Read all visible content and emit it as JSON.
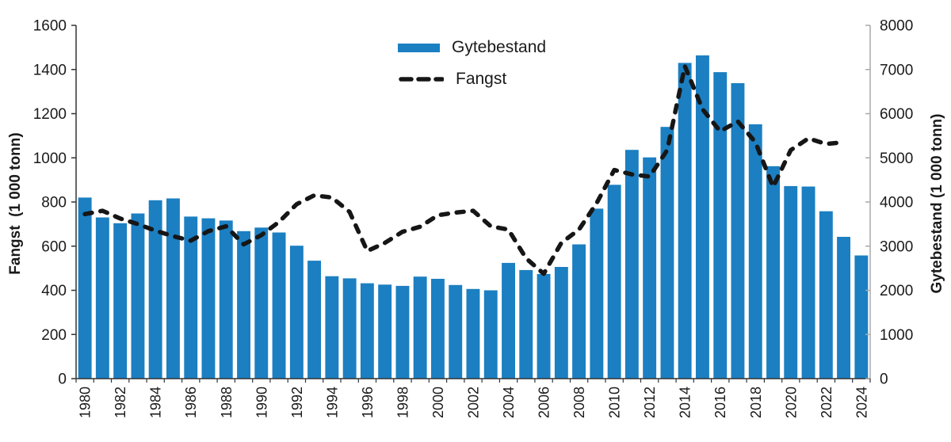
{
  "chart_data": {
    "type": "combo_bar_line",
    "title": "",
    "categories": [
      1980,
      1981,
      1982,
      1983,
      1984,
      1985,
      1986,
      1987,
      1988,
      1989,
      1990,
      1991,
      1992,
      1993,
      1994,
      1995,
      1996,
      1997,
      1998,
      1999,
      2000,
      2001,
      2002,
      2003,
      2004,
      2005,
      2006,
      2007,
      2008,
      2009,
      2010,
      2011,
      2012,
      2013,
      2014,
      2015,
      2016,
      2017,
      2018,
      2019,
      2020,
      2021,
      2022,
      2023,
      2024
    ],
    "series": [
      {
        "name": "Gytebestand",
        "type": "bar",
        "axis": "right",
        "color": "#1b7fc2",
        "values": [
          4100,
          3650,
          3520,
          3740,
          4040,
          4080,
          3670,
          3630,
          3580,
          3340,
          3420,
          3310,
          3010,
          2670,
          2320,
          2270,
          2160,
          2130,
          2100,
          2310,
          2260,
          2120,
          2030,
          2000,
          2620,
          2460,
          2370,
          2530,
          3040,
          3850,
          4390,
          5180,
          5010,
          5700,
          7150,
          7320,
          6940,
          6690,
          5760,
          4810,
          4360,
          4350,
          3790,
          3210,
          2790
        ]
      },
      {
        "name": "Fangst",
        "type": "line",
        "axis": "left",
        "color": "#161616",
        "dashed": true,
        "values": [
          745,
          760,
          725,
          700,
          670,
          645,
          625,
          668,
          690,
          608,
          650,
          710,
          790,
          830,
          820,
          755,
          578,
          615,
          665,
          688,
          740,
          752,
          760,
          690,
          675,
          545,
          475,
          615,
          675,
          795,
          945,
          925,
          915,
          1035,
          1415,
          1220,
          1120,
          1165,
          1070,
          868,
          1035,
          1088,
          1063,
          1070,
          null
        ]
      }
    ],
    "left_axis": {
      "title": "Fangst  (1 000 tonn)",
      "min": 0,
      "max": 1600,
      "step": 200,
      "ticks": [
        0,
        200,
        400,
        600,
        800,
        1000,
        1200,
        1400,
        1600
      ]
    },
    "right_axis": {
      "title": "Gytebestand (1 000 tonn)",
      "min": 0,
      "max": 8000,
      "step": 1000,
      "ticks": [
        0,
        1000,
        2000,
        3000,
        4000,
        5000,
        6000,
        7000,
        8000
      ]
    },
    "x_axis": {
      "tick_years": [
        1980,
        1982,
        1984,
        1986,
        1988,
        1990,
        1992,
        1994,
        1996,
        1998,
        2000,
        2002,
        2004,
        2006,
        2008,
        2010,
        2012,
        2014,
        2016,
        2018,
        2020,
        2022,
        2024
      ]
    },
    "legend": {
      "position": "top-center",
      "entries": [
        "Gytebestand",
        "Fangst"
      ]
    },
    "grid": false
  }
}
